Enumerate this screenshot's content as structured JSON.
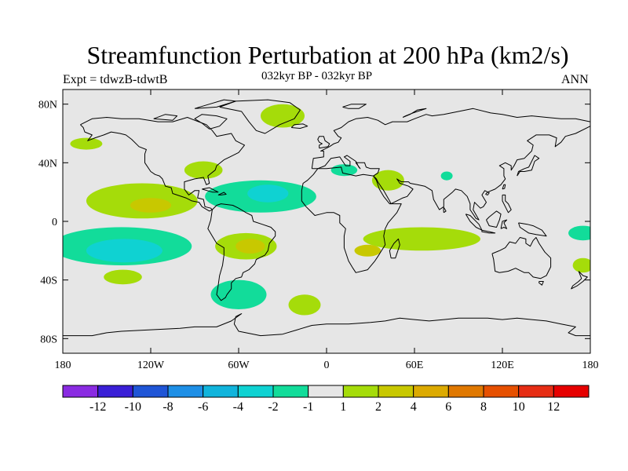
{
  "chart_data": {
    "type": "filled-contour-map",
    "title": "Streamfunction Perturbation at 200 hPa (km2/s)",
    "left_string": "Expt = tdwzB-tdwtB",
    "center_string": "032kyr BP - 032kyr BP",
    "right_string": "ANN",
    "lon_range": [
      -180,
      180
    ],
    "lat_range": [
      -90,
      90
    ],
    "x_ticks": [
      {
        "value": -180,
        "label": "180"
      },
      {
        "value": -120,
        "label": "120W"
      },
      {
        "value": -60,
        "label": "60W"
      },
      {
        "value": 0,
        "label": "0"
      },
      {
        "value": 60,
        "label": "60E"
      },
      {
        "value": 120,
        "label": "120E"
      },
      {
        "value": 180,
        "label": "180"
      }
    ],
    "y_ticks": [
      {
        "value": 80,
        "label": "80N"
      },
      {
        "value": 40,
        "label": "40N"
      },
      {
        "value": 0,
        "label": "0"
      },
      {
        "value": -40,
        "label": "40S"
      },
      {
        "value": -80,
        "label": "80S"
      }
    ],
    "colorbar": {
      "levels": [
        "-12",
        "-10",
        "-8",
        "-6",
        "-4",
        "-2",
        "-1",
        "1",
        "2",
        "4",
        "6",
        "8",
        "10",
        "12"
      ],
      "colors": [
        "#8a2be2",
        "#3a1fd6",
        "#1f55d6",
        "#1e8fe6",
        "#11b4dc",
        "#0fd2d2",
        "#12dc9a",
        "#e6e6e6",
        "#a5dc0a",
        "#c8c800",
        "#dcaa00",
        "#e07800",
        "#e65000",
        "#e62d14",
        "#e60000"
      ]
    },
    "regions": [
      {
        "name": "North Pacific positive patch",
        "lon": -164,
        "lat": 53,
        "rlon": 11,
        "rlat": 4,
        "level": "1 to 2"
      },
      {
        "name": "Arctic positive patch",
        "lon": -30,
        "lat": 72,
        "rlon": 15,
        "rlat": 8,
        "level": "1 to 2"
      },
      {
        "name": "North Atlantic positive patch",
        "lon": -84,
        "lat": 35,
        "rlon": 13,
        "rlat": 6,
        "level": "1 to 2"
      },
      {
        "name": "Central Pacific positive area",
        "lon": -126,
        "lat": 14,
        "rlon": 38,
        "rlat": 12,
        "level": "1 to 2"
      },
      {
        "name": "Central Pacific maximum",
        "lon": -120,
        "lat": 11,
        "rlon": 14,
        "rlat": 5,
        "level": "2 to 4"
      },
      {
        "name": "Tropical Atlantic negative area",
        "lon": -45,
        "lat": 17,
        "rlon": 38,
        "rlat": 11,
        "level": "-2 to -1"
      },
      {
        "name": "Tropical Atlantic minimum",
        "lon": -40,
        "lat": 19,
        "rlon": 14,
        "rlat": 6,
        "level": "-4 to -2"
      },
      {
        "name": "Tropical Pacific negative area",
        "lon": -140,
        "lat": -17,
        "rlon": 48,
        "rlat": 13,
        "level": "-2 to -1"
      },
      {
        "name": "Tropical Pacific minimum",
        "lon": -138,
        "lat": -20,
        "rlon": 26,
        "rlat": 8,
        "level": "-4 to -2"
      },
      {
        "name": "South America positive area",
        "lon": -55,
        "lat": -17,
        "rlon": 21,
        "rlat": 9,
        "level": "1 to 2"
      },
      {
        "name": "South America maximum",
        "lon": -52,
        "lat": -17,
        "rlon": 10,
        "rlat": 5,
        "level": "2 to 4"
      },
      {
        "name": "South Pacific positive patch",
        "lon": -139,
        "lat": -38,
        "rlon": 13,
        "rlat": 5,
        "level": "1 to 2"
      },
      {
        "name": "South Atlantic negative area",
        "lon": -60,
        "lat": -50,
        "rlon": 19,
        "rlat": 10,
        "level": "-2 to -1"
      },
      {
        "name": "Southern Ocean positive patch",
        "lon": -15,
        "lat": -57,
        "rlon": 11,
        "rlat": 7,
        "level": "1 to 2"
      },
      {
        "name": "Mediterranean negative patch",
        "lon": 12,
        "lat": 35,
        "rlon": 9,
        "rlat": 4,
        "level": "-2 to -1"
      },
      {
        "name": "Middle East positive patch",
        "lon": 42,
        "lat": 28,
        "rlon": 11,
        "rlat": 7,
        "level": "1 to 2"
      },
      {
        "name": "Indian Ocean positive band",
        "lon": 65,
        "lat": -12,
        "rlon": 40,
        "rlat": 8,
        "level": "1 to 2"
      },
      {
        "name": "Southern Africa maximum",
        "lon": 28,
        "lat": -20,
        "rlon": 9,
        "rlat": 4,
        "level": "2 to 4"
      },
      {
        "name": "Maritime continent negative patch",
        "lon": 82,
        "lat": 31,
        "rlon": 4,
        "rlat": 3,
        "level": "-2 to -1"
      },
      {
        "name": "Western Pacific negative patch",
        "lon": 175,
        "lat": -8,
        "rlon": 10,
        "rlat": 5,
        "level": "-2 to -1"
      },
      {
        "name": "Southwest Pacific positive patch",
        "lon": 175,
        "lat": -30,
        "rlon": 7,
        "rlat": 5,
        "level": "1 to 2"
      }
    ]
  }
}
